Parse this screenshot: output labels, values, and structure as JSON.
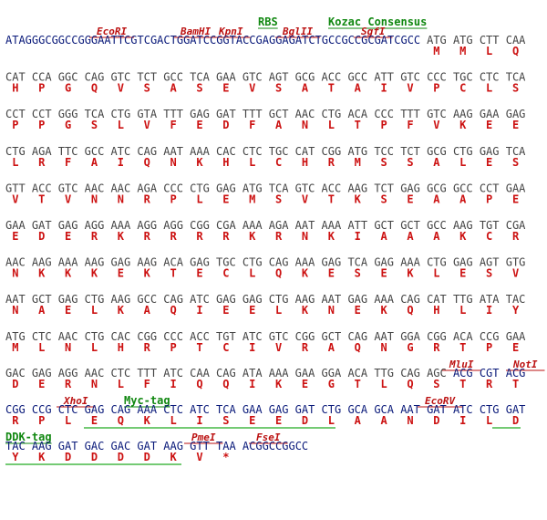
{
  "rows": [
    {
      "annotations": [
        {
          "label": "RBS",
          "color": "#118811"
        },
        {
          "label": "Kozac Consensus",
          "color": "#118811"
        },
        {
          "label": "EcoRI",
          "color": "#bb1111"
        },
        {
          "label": "BamHI",
          "color": "#bb1111"
        },
        {
          "label": "KpnI",
          "color": "#bb1111"
        },
        {
          "label": "BglII",
          "color": "#bb1111"
        },
        {
          "label": "SgfI",
          "color": "#bb1111"
        }
      ],
      "dna": [
        {
          "seq": "ATAGGGCGGCCGGGAATTCGTCGACTGGATCCGGTACCGAGGAGATCTGCCGCCGCGATCGCC",
          "color": "#0a1a7a"
        },
        {
          "seq": "ATG",
          "color": "#444444"
        },
        {
          "seq": "ATG",
          "color": "#444444"
        },
        {
          "seq": "CTT",
          "color": "#444444"
        },
        {
          "seq": "CAA",
          "color": "#444444"
        }
      ],
      "aa": [
        null,
        "M",
        "M",
        "L",
        "Q"
      ]
    },
    {
      "dna": [
        "CAT",
        "CCA",
        "GGC",
        "CAG",
        "GTC",
        "TCT",
        "GCC",
        "TCA",
        "GAA",
        "GTC",
        "AGT",
        "GCG",
        "ACC",
        "GCC",
        "ATT",
        "GTC",
        "CCC",
        "TGC",
        "CTC",
        "TCA"
      ],
      "aa": [
        "H",
        "P",
        "G",
        "Q",
        "V",
        "S",
        "A",
        "S",
        "E",
        "V",
        "S",
        "A",
        "T",
        "A",
        "I",
        "V",
        "P",
        "C",
        "L",
        "S"
      ]
    },
    {
      "dna": [
        "CCT",
        "CCT",
        "GGG",
        "TCA",
        "CTG",
        "GTA",
        "TTT",
        "GAG",
        "GAT",
        "TTT",
        "GCT",
        "AAC",
        "CTG",
        "ACA",
        "CCC",
        "TTT",
        "GTC",
        "AAG",
        "GAA",
        "GAG"
      ],
      "aa": [
        "P",
        "P",
        "G",
        "S",
        "L",
        "V",
        "F",
        "E",
        "D",
        "F",
        "A",
        "N",
        "L",
        "T",
        "P",
        "F",
        "V",
        "K",
        "E",
        "E"
      ]
    },
    {
      "dna": [
        "CTG",
        "AGA",
        "TTC",
        "GCC",
        "ATC",
        "CAG",
        "AAT",
        "AAA",
        "CAC",
        "CTC",
        "TGC",
        "CAT",
        "CGG",
        "ATG",
        "TCC",
        "TCT",
        "GCG",
        "CTG",
        "GAG",
        "TCA"
      ],
      "aa": [
        "L",
        "R",
        "F",
        "A",
        "I",
        "Q",
        "N",
        "K",
        "H",
        "L",
        "C",
        "H",
        "R",
        "M",
        "S",
        "S",
        "A",
        "L",
        "E",
        "S"
      ]
    },
    {
      "dna": [
        "GTT",
        "ACC",
        "GTC",
        "AAC",
        "AAC",
        "AGA",
        "CCC",
        "CTG",
        "GAG",
        "ATG",
        "TCA",
        "GTC",
        "ACC",
        "AAG",
        "TCT",
        "GAG",
        "GCG",
        "GCC",
        "CCT",
        "GAA"
      ],
      "aa": [
        "V",
        "T",
        "V",
        "N",
        "N",
        "R",
        "P",
        "L",
        "E",
        "M",
        "S",
        "V",
        "T",
        "K",
        "S",
        "E",
        "A",
        "A",
        "P",
        "E"
      ]
    },
    {
      "dna": [
        "GAA",
        "GAT",
        "GAG",
        "AGG",
        "AAA",
        "AGG",
        "AGG",
        "CGG",
        "CGA",
        "AAA",
        "AGA",
        "AAT",
        "AAA",
        "ATT",
        "GCT",
        "GCT",
        "GCC",
        "AAG",
        "TGT",
        "CGA"
      ],
      "aa": [
        "E",
        "D",
        "E",
        "R",
        "K",
        "R",
        "R",
        "R",
        "R",
        "K",
        "R",
        "N",
        "K",
        "I",
        "A",
        "A",
        "A",
        "K",
        "C",
        "R"
      ]
    },
    {
      "dna": [
        "AAC",
        "AAG",
        "AAA",
        "AAG",
        "GAG",
        "AAG",
        "ACA",
        "GAG",
        "TGC",
        "CTG",
        "CAG",
        "AAA",
        "GAG",
        "TCA",
        "GAG",
        "AAA",
        "CTG",
        "GAG",
        "AGT",
        "GTG"
      ],
      "aa": [
        "N",
        "K",
        "K",
        "K",
        "E",
        "K",
        "T",
        "E",
        "C",
        "L",
        "Q",
        "K",
        "E",
        "S",
        "E",
        "K",
        "L",
        "E",
        "S",
        "V"
      ]
    },
    {
      "dna": [
        "AAT",
        "GCT",
        "GAG",
        "CTG",
        "AAG",
        "GCC",
        "CAG",
        "ATC",
        "GAG",
        "GAG",
        "CTG",
        "AAG",
        "AAT",
        "GAG",
        "AAA",
        "CAG",
        "CAT",
        "TTG",
        "ATA",
        "TAC"
      ],
      "aa": [
        "N",
        "A",
        "E",
        "L",
        "K",
        "A",
        "Q",
        "I",
        "E",
        "E",
        "L",
        "K",
        "N",
        "E",
        "K",
        "Q",
        "H",
        "L",
        "I",
        "Y"
      ]
    },
    {
      "dna": [
        "ATG",
        "CTC",
        "AAC",
        "CTG",
        "CAC",
        "CGG",
        "CCC",
        "ACC",
        "TGT",
        "ATC",
        "GTC",
        "CGG",
        "GCT",
        "CAG",
        "AAT",
        "GGA",
        "CGG",
        "ACA",
        "CCG",
        "GAA"
      ],
      "aa": [
        "M",
        "L",
        "N",
        "L",
        "H",
        "R",
        "P",
        "T",
        "C",
        "I",
        "V",
        "R",
        "A",
        "Q",
        "N",
        "G",
        "R",
        "T",
        "P",
        "E"
      ]
    },
    {
      "annotations": [
        {
          "label": "MluI",
          "color": "#bb1111"
        },
        {
          "label": "NotI",
          "color": "#bb1111"
        }
      ],
      "dna": [
        {
          "seq": "GAC",
          "color": "#444444"
        },
        {
          "seq": "GAG",
          "color": "#444444"
        },
        {
          "seq": "AGG",
          "color": "#444444"
        },
        {
          "seq": "AAC",
          "color": "#444444"
        },
        {
          "seq": "CTC",
          "color": "#444444"
        },
        {
          "seq": "TTT",
          "color": "#444444"
        },
        {
          "seq": "ATC",
          "color": "#444444"
        },
        {
          "seq": "CAA",
          "color": "#444444"
        },
        {
          "seq": "CAG",
          "color": "#444444"
        },
        {
          "seq": "ATA",
          "color": "#444444"
        },
        {
          "seq": "AAA",
          "color": "#444444"
        },
        {
          "seq": "GAA",
          "color": "#444444"
        },
        {
          "seq": "GGA",
          "color": "#444444"
        },
        {
          "seq": "ACA",
          "color": "#444444"
        },
        {
          "seq": "TTG",
          "color": "#444444"
        },
        {
          "seq": "CAG",
          "color": "#444444"
        },
        {
          "seq": "AGC",
          "color": "#444444"
        },
        {
          "seq": "ACG",
          "color": "#0a1a7a"
        },
        {
          "seq": "CGT",
          "color": "#0a1a7a"
        },
        {
          "seq": "ACG",
          "color": "#0a1a7a"
        }
      ],
      "aa": [
        "D",
        "E",
        "R",
        "N",
        "L",
        "F",
        "I",
        "Q",
        "Q",
        "I",
        "K",
        "E",
        "G",
        "T",
        "L",
        "Q",
        "S",
        "T",
        "R",
        "T"
      ]
    },
    {
      "annotations": [
        {
          "label": "XhoI",
          "color": "#bb1111"
        },
        {
          "label": "Myc-tag",
          "color": "#118811"
        },
        {
          "label": "EcoRV",
          "color": "#bb1111"
        }
      ],
      "dna": [
        {
          "seq": "CGG",
          "color": "#0a1a7a"
        },
        {
          "seq": "CCG",
          "color": "#0a1a7a"
        },
        {
          "seq": "CTC",
          "color": "#0a1a7a"
        },
        {
          "seq": "GAG",
          "color": "#0a1a7a"
        },
        {
          "seq": "CAG",
          "color": "#0a1a7a"
        },
        {
          "seq": "AAA",
          "color": "#0a1a7a"
        },
        {
          "seq": "CTC",
          "color": "#0a1a7a"
        },
        {
          "seq": "ATC",
          "color": "#0a1a7a"
        },
        {
          "seq": "TCA",
          "color": "#0a1a7a"
        },
        {
          "seq": "GAA",
          "color": "#0a1a7a"
        },
        {
          "seq": "GAG",
          "color": "#0a1a7a"
        },
        {
          "seq": "GAT",
          "color": "#0a1a7a"
        },
        {
          "seq": "CTG",
          "color": "#0a1a7a"
        },
        {
          "seq": "GCA",
          "color": "#0a1a7a"
        },
        {
          "seq": "GCA",
          "color": "#0a1a7a"
        },
        {
          "seq": "AAT",
          "color": "#0a1a7a"
        },
        {
          "seq": "GAT",
          "color": "#0a1a7a"
        },
        {
          "seq": "ATC",
          "color": "#0a1a7a"
        },
        {
          "seq": "CTG",
          "color": "#0a1a7a"
        },
        {
          "seq": "GAT",
          "color": "#0a1a7a"
        }
      ],
      "aa": [
        "R",
        "P",
        "L",
        "E",
        "Q",
        "K",
        "L",
        "I",
        "S",
        "E",
        "E",
        "D",
        "L",
        "A",
        "A",
        "N",
        "D",
        "I",
        "L",
        "D"
      ]
    },
    {
      "annotations": [
        {
          "label": "DDK-tag",
          "color": "#118811"
        },
        {
          "label": "PmeI",
          "color": "#bb1111"
        },
        {
          "label": "FseI",
          "color": "#bb1111"
        }
      ],
      "dna": [
        {
          "seq": "TAC",
          "color": "#0a1a7a"
        },
        {
          "seq": "AAG",
          "color": "#0a1a7a"
        },
        {
          "seq": "GAT",
          "color": "#0a1a7a"
        },
        {
          "seq": "GAC",
          "color": "#0a1a7a"
        },
        {
          "seq": "GAC",
          "color": "#0a1a7a"
        },
        {
          "seq": "GAT",
          "color": "#0a1a7a"
        },
        {
          "seq": "AAG",
          "color": "#0a1a7a"
        },
        {
          "seq": "GTT",
          "color": "#0a1a7a"
        },
        {
          "seq": "TAA",
          "color": "#0a1a7a"
        },
        {
          "seq": "ACGGCCGGCC",
          "color": "#0a1a7a"
        }
      ],
      "aa": [
        "Y",
        "K",
        "D",
        "D",
        "D",
        "D",
        "K",
        "V",
        "*",
        null
      ]
    }
  ]
}
